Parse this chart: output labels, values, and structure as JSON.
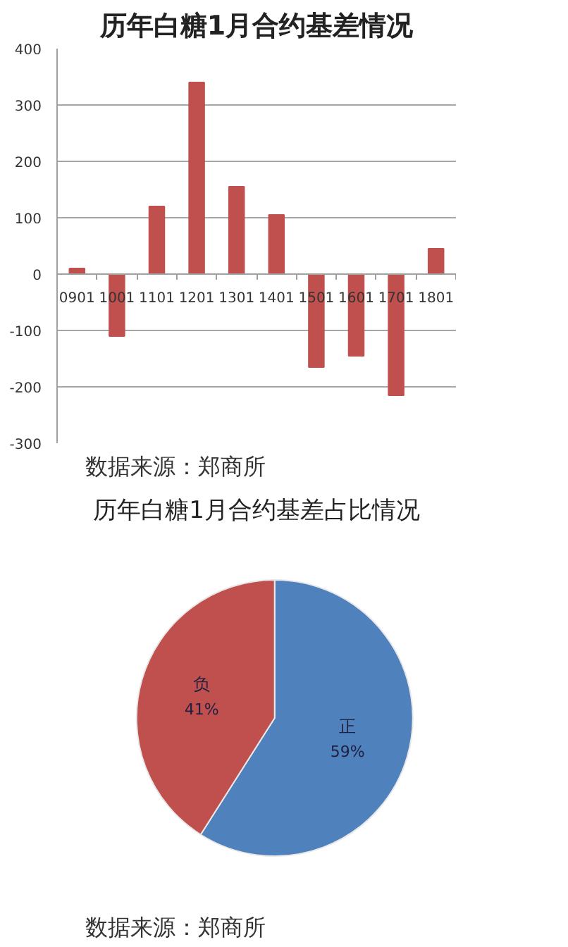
{
  "chart_data": [
    {
      "type": "bar",
      "title": "历年白糖1月合约基差情况",
      "categories": [
        "0901",
        "1001",
        "1101",
        "1201",
        "1301",
        "1401",
        "1501",
        "1601",
        "1701",
        "1801"
      ],
      "values": [
        10,
        -110,
        120,
        340,
        155,
        105,
        -165,
        -145,
        -215,
        45
      ],
      "color": "#c0504d",
      "ylim": [
        -300,
        400
      ],
      "yticks": [
        -300,
        -200,
        -100,
        0,
        100,
        200,
        300,
        400
      ],
      "grid": "y",
      "annotations": [
        "数据来源：郑商所"
      ]
    },
    {
      "type": "pie",
      "title": "历年白糖1月合约基差占比情况",
      "categories": [
        "正",
        "负"
      ],
      "values": [
        59,
        41
      ],
      "colors": [
        "#4f81bd",
        "#c0504d"
      ],
      "value_labels": [
        "59%",
        "41%"
      ],
      "annotations": [
        "数据来源：郑商所"
      ]
    }
  ]
}
